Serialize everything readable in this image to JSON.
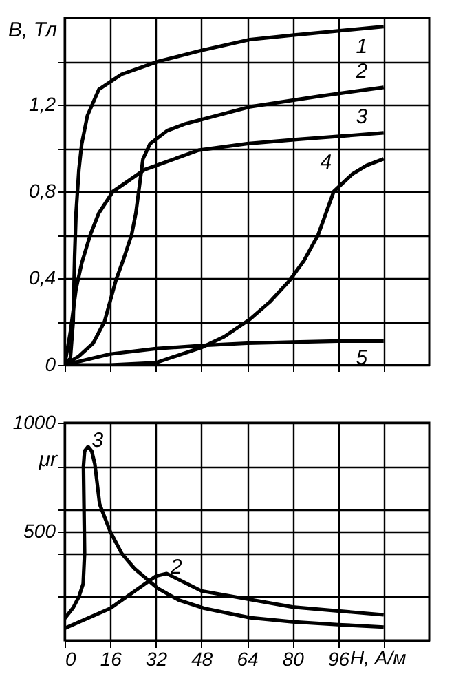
{
  "chart_data": [
    {
      "type": "line",
      "ylabel": "В, Тл",
      "xlim": [
        0,
        128
      ],
      "xticks": [
        0,
        16,
        32,
        48,
        64,
        80,
        96,
        {
          "value": 112,
          "label": null
        }
      ],
      "ylim": [
        0,
        1.6
      ],
      "yticks": [
        {
          "value": 0,
          "label": "0"
        },
        {
          "value": 0.2,
          "label": null
        },
        {
          "value": 0.4,
          "label": "0,4"
        },
        {
          "value": 0.6,
          "label": null
        },
        {
          "value": 0.8,
          "label": "0,8"
        },
        {
          "value": 1.0,
          "label": null
        },
        {
          "value": 1.2,
          "label": "1,2"
        },
        {
          "value": 1.4,
          "label": null
        }
      ],
      "grid": true,
      "tick_labels": "y",
      "legend": false,
      "series": [
        {
          "name": "1",
          "color": "#000000",
          "x": [
            0,
            2,
            3,
            3.5,
            4,
            5,
            6,
            8,
            12,
            20,
            33,
            48,
            65,
            80,
            96,
            112
          ],
          "values": [
            0,
            0.03,
            0.2,
            0.5,
            0.7,
            0.9,
            1.02,
            1.15,
            1.27,
            1.34,
            1.4,
            1.45,
            1.5,
            1.52,
            1.54,
            1.56
          ]
        },
        {
          "name": "2",
          "color": "#000000",
          "x": [
            0,
            5,
            10,
            14,
            18,
            21,
            23.5,
            25,
            26,
            27.5,
            30,
            36,
            42,
            65,
            90,
            112
          ],
          "values": [
            0,
            0.04,
            0.1,
            0.2,
            0.39,
            0.5,
            0.6,
            0.7,
            0.8,
            0.95,
            1.02,
            1.08,
            1.11,
            1.19,
            1.24,
            1.28
          ]
        },
        {
          "name": "3",
          "color": "#000000",
          "x": [
            0,
            2,
            4,
            6,
            9,
            12,
            17,
            28,
            47,
            64,
            82,
            112
          ],
          "values": [
            0,
            0.15,
            0.35,
            0.47,
            0.6,
            0.7,
            0.8,
            0.9,
            0.99,
            1.02,
            1.04,
            1.07
          ]
        },
        {
          "name": "4",
          "color": "#000000",
          "x": [
            0,
            16,
            32,
            48,
            56,
            65,
            72,
            79,
            84,
            89,
            94.5,
            101,
            106,
            112
          ],
          "values": [
            0,
            0,
            0.01,
            0.08,
            0.13,
            0.21,
            0.29,
            0.39,
            0.48,
            0.6,
            0.8,
            0.88,
            0.92,
            0.95
          ]
        },
        {
          "name": "5",
          "color": "#000000",
          "x": [
            0,
            16,
            32,
            49,
            64,
            80,
            96,
            112
          ],
          "values": [
            0,
            0.05,
            0.075,
            0.09,
            0.1,
            0.105,
            0.11,
            0.11
          ]
        }
      ]
    },
    {
      "type": "line",
      "xlabel": "Н, А/м",
      "ylabel": "μr",
      "xlim": [
        0,
        128
      ],
      "xticks": [
        0,
        16,
        32,
        48,
        64,
        80,
        96,
        {
          "value": 112,
          "label": null
        }
      ],
      "ylim": [
        0,
        1000
      ],
      "yticks": [
        {
          "value": 200,
          "label": null
        },
        {
          "value": 400,
          "label": null
        },
        500,
        {
          "value": 600,
          "label": null
        },
        {
          "value": 800,
          "label": null
        },
        1000
      ],
      "grid": true,
      "legend": false,
      "series": [
        {
          "name": "3",
          "color": "#000000",
          "x": [
            0,
            3,
            5,
            6.5,
            7,
            6.8,
            6.6,
            7,
            8.2,
            9.5,
            10.6,
            12.3,
            16,
            20,
            24.5,
            32.6,
            40,
            49,
            65,
            80,
            96,
            112
          ],
          "values": [
            100,
            150,
            200,
            260,
            400,
            600,
            800,
            870,
            890,
            870,
            810,
            625,
            500,
            400,
            330,
            240,
            185,
            147,
            104,
            85,
            72,
            61
          ]
        },
        {
          "name": "2",
          "color": "#000000",
          "x": [
            0,
            16,
            32,
            35.8,
            48,
            64,
            80,
            96,
            112
          ],
          "values": [
            55,
            147,
            295,
            307,
            227,
            190,
            153,
            135,
            117
          ]
        }
      ]
    }
  ]
}
